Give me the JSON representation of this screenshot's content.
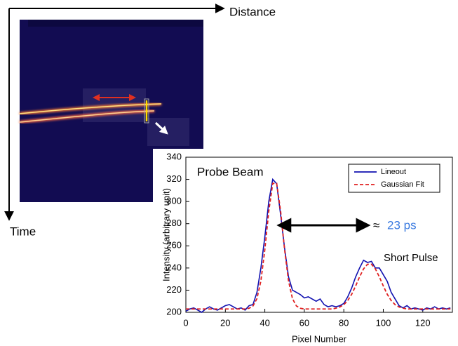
{
  "diagram": {
    "horizontal_label": "Distance",
    "vertical_label": "Time"
  },
  "chart_data": {
    "type": "line",
    "x_label": "Pixel Number",
    "y_label": "Intensity (arbitrary unit)",
    "annotations": {
      "left_peak": "Probe Beam",
      "right_peak": "Short Pulse",
      "approx": "≈",
      "duration": "23 ps"
    },
    "x": [
      0,
      2,
      4,
      6,
      8,
      10,
      12,
      14,
      16,
      18,
      20,
      22,
      24,
      26,
      28,
      30,
      32,
      34,
      36,
      38,
      40,
      42,
      44,
      46,
      48,
      50,
      52,
      54,
      56,
      58,
      60,
      62,
      64,
      66,
      68,
      70,
      72,
      74,
      76,
      78,
      80,
      82,
      84,
      86,
      88,
      90,
      92,
      94,
      96,
      98,
      100,
      102,
      104,
      106,
      108,
      110,
      112,
      114,
      116,
      118,
      120,
      122,
      124,
      126,
      128,
      130,
      132,
      134
    ],
    "series": [
      {
        "name": "Lineout",
        "color": "#1010b0",
        "dash": false,
        "values": [
          201,
          203,
          204,
          202,
          200,
          203,
          205,
          203,
          202,
          204,
          206,
          207,
          205,
          203,
          204,
          202,
          206,
          207,
          218,
          240,
          268,
          300,
          320,
          316,
          288,
          258,
          232,
          220,
          218,
          216,
          213,
          214,
          212,
          210,
          212,
          207,
          205,
          206,
          205,
          206,
          208,
          214,
          222,
          232,
          240,
          247,
          245,
          246,
          240,
          240,
          234,
          228,
          218,
          212,
          206,
          204,
          206,
          203,
          204,
          203,
          202,
          204,
          203,
          205,
          203,
          204,
          203,
          204
        ]
      },
      {
        "name": "Gaussian Fit",
        "color": "#e02020",
        "dash": true,
        "values": [
          203,
          203,
          203,
          203,
          203,
          203,
          203,
          203,
          203,
          203,
          203,
          203,
          203,
          203,
          203,
          203,
          203.6,
          205.7,
          212.3,
          228.3,
          256.6,
          291.3,
          316.4,
          316.4,
          291.3,
          256.6,
          228.3,
          212.3,
          205.7,
          203.6,
          203,
          203,
          203,
          203,
          203,
          203,
          203,
          203,
          203.7,
          204.8,
          206.9,
          210.6,
          216.3,
          223.8,
          232,
          239.2,
          243.4,
          243.4,
          239.2,
          232,
          223.8,
          216.3,
          210.6,
          206.9,
          204.8,
          203.7,
          203,
          203,
          203,
          203,
          203,
          203,
          203,
          203,
          203,
          203,
          203,
          203
        ]
      }
    ],
    "xlim": [
      0,
      135
    ],
    "ylim": [
      200,
      340
    ],
    "xticks": [
      0,
      20,
      40,
      60,
      80,
      100,
      120
    ],
    "yticks": [
      200,
      220,
      240,
      260,
      280,
      300,
      320,
      340
    ],
    "legend": "upper right",
    "duration_color": "#3b7be0"
  }
}
